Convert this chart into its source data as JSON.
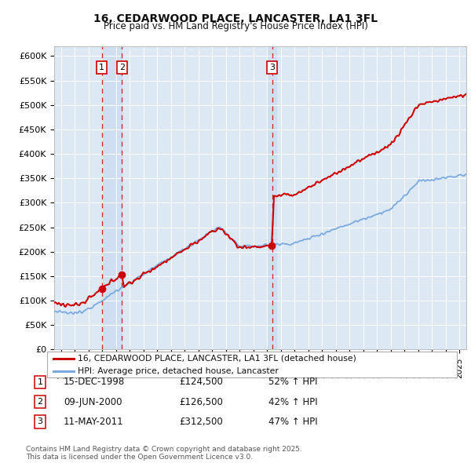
{
  "title": "16, CEDARWOOD PLACE, LANCASTER, LA1 3FL",
  "subtitle": "Price paid vs. HM Land Registry's House Price Index (HPI)",
  "ylabel_ticks": [
    "£0",
    "£50K",
    "£100K",
    "£150K",
    "£200K",
    "£250K",
    "£300K",
    "£350K",
    "£400K",
    "£450K",
    "£500K",
    "£550K",
    "£600K"
  ],
  "ytick_values": [
    0,
    50000,
    100000,
    150000,
    200000,
    250000,
    300000,
    350000,
    400000,
    450000,
    500000,
    550000,
    600000
  ],
  "xstart": 1995.5,
  "xend": 2025.5,
  "ylim_max": 620000,
  "chart_bg": "#dde8f5",
  "background_color": "#ffffff",
  "grid_color": "#ffffff",
  "red_line_color": "#cc0000",
  "blue_line_color": "#7aaadd",
  "sale_points": [
    {
      "index": 1,
      "date": "15-DEC-1998",
      "price": 124500,
      "pct": "52%",
      "year": 1998.96
    },
    {
      "index": 2,
      "date": "09-JUN-2000",
      "price": 126500,
      "pct": "42%",
      "year": 2000.44
    },
    {
      "index": 3,
      "date": "11-MAY-2011",
      "price": 312500,
      "pct": "47%",
      "year": 2011.36
    }
  ],
  "legend_entries": [
    {
      "label": "16, CEDARWOOD PLACE, LANCASTER, LA1 3FL (detached house)",
      "color": "#cc0000"
    },
    {
      "label": "HPI: Average price, detached house, Lancaster",
      "color": "#7aaadd"
    }
  ],
  "footnote": "Contains HM Land Registry data © Crown copyright and database right 2025.\nThis data is licensed under the Open Government Licence v3.0."
}
